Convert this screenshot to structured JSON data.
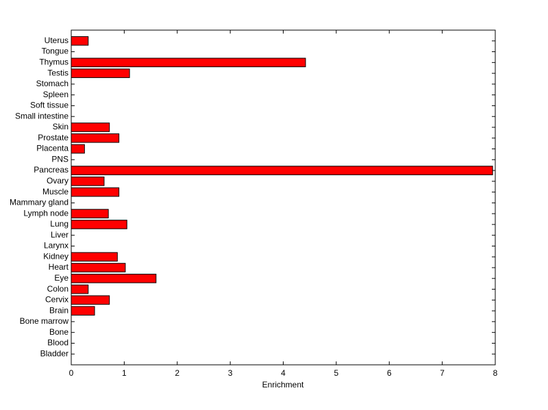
{
  "chart_data": {
    "type": "barh",
    "xlabel": "Enrichment",
    "categories": [
      "Bladder",
      "Blood",
      "Bone",
      "Bone marrow",
      "Brain",
      "Cervix",
      "Colon",
      "Eye",
      "Heart",
      "Kidney",
      "Larynx",
      "Liver",
      "Lung",
      "Lymph node",
      "Mammary gland",
      "Muscle",
      "Ovary",
      "Pancreas",
      "PNS",
      "Placenta",
      "Prostate",
      "Skin",
      "Small intestine",
      "Soft tissue",
      "Spleen",
      "Stomach",
      "Testis",
      "Thymus",
      "Tongue",
      "Uterus"
    ],
    "values": [
      0,
      0,
      0,
      0,
      0.44,
      0.72,
      0.32,
      1.6,
      1.02,
      0.87,
      0,
      0,
      1.05,
      0.7,
      0,
      0.9,
      0.62,
      7.95,
      0,
      0.25,
      0.9,
      0.72,
      0,
      0,
      0,
      0,
      1.1,
      4.42,
      0,
      0.32
    ],
    "color": "#ff0000",
    "xlim": [
      0,
      8
    ],
    "xticks": [
      0,
      1,
      2,
      3,
      4,
      5,
      6,
      7,
      8
    ]
  }
}
